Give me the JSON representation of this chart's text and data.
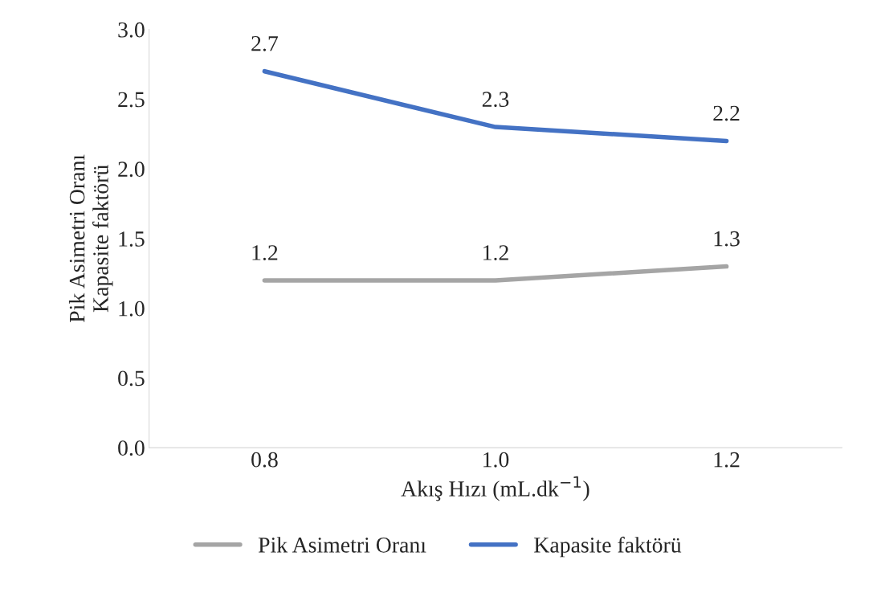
{
  "chart_data": {
    "type": "line",
    "xlabel": "Akış Hızı (mL.dk$^{−1}$)",
    "ylabel": "Pik Asimetri Oranı\nKapasite faktörü",
    "categories": [
      "0.8",
      "1.0",
      "1.2"
    ],
    "series": [
      {
        "name": "Pik Asimetri Oranı",
        "color": "#a5a5a5",
        "values": [
          1.2,
          1.2,
          1.3
        ]
      },
      {
        "name": "Kapasite faktörü",
        "color": "#4472c4",
        "values": [
          2.7,
          2.3,
          2.2
        ]
      }
    ],
    "ylim": [
      0,
      3
    ],
    "yticks": [
      {
        "value": 0,
        "label": "0.0"
      },
      {
        "value": 0.5,
        "label": "0.5"
      },
      {
        "value": 1,
        "label": "1.0"
      },
      {
        "value": 1.5,
        "label": "1.5"
      },
      {
        "value": 2,
        "label": "2.0"
      },
      {
        "value": 2.5,
        "label": "2.5"
      },
      {
        "value": 3,
        "label": "3.0"
      }
    ],
    "data_labels": true,
    "legend": "bottom",
    "grid": false,
    "marker": "none",
    "line_style": "solid"
  }
}
